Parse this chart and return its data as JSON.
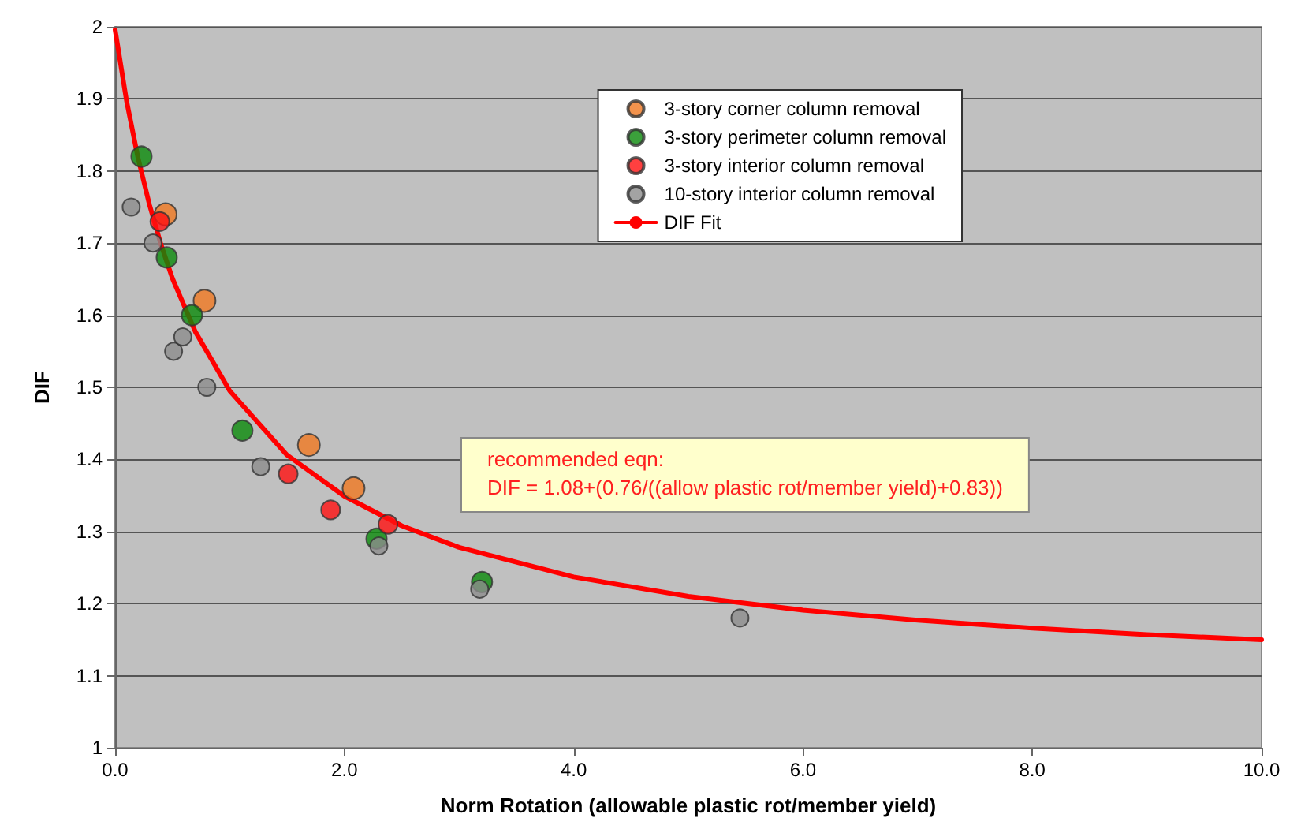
{
  "chart_data": {
    "type": "scatter",
    "xlabel": "Norm Rotation (allowable plastic rot/member yield)",
    "ylabel": "DIF",
    "xlim": [
      0,
      10
    ],
    "xticks": [
      {
        "value": 0,
        "label": "0.0"
      },
      {
        "value": 2,
        "label": "2.0"
      },
      {
        "value": 4,
        "label": "4.0"
      },
      {
        "value": 6,
        "label": "6.0"
      },
      {
        "value": 8,
        "label": "8.0"
      },
      {
        "value": 10,
        "label": "10.0"
      }
    ],
    "ylim": [
      1,
      2
    ],
    "yticks": [
      1,
      1.1,
      1.2,
      1.3,
      1.4,
      1.5,
      1.6,
      1.7,
      1.8,
      1.9,
      2
    ],
    "grid": "y",
    "legend": "top right",
    "marker": "circle",
    "annotations": [
      "recommended eqn:",
      "DIF = 1.08+(0.76/((allow plastic rot/member yield)+0.83))"
    ],
    "series": [
      {
        "name": "3-story corner column removal",
        "color": "#f07820",
        "x": [
          0.44,
          0.78,
          1.69,
          2.08
        ],
        "values": [
          1.74,
          1.62,
          1.42,
          1.36
        ]
      },
      {
        "name": "3-story perimeter column removal",
        "color": "#0a8a0a",
        "x": [
          0.23,
          0.45,
          0.67,
          1.11,
          2.28,
          3.2
        ],
        "values": [
          1.82,
          1.68,
          1.6,
          1.44,
          1.29,
          1.23
        ]
      },
      {
        "name": "3-story interior column removal",
        "color": "#ff1010",
        "x": [
          0.39,
          1.51,
          1.88,
          2.38
        ],
        "values": [
          1.73,
          1.38,
          1.33,
          1.31
        ]
      },
      {
        "name": "10-story interior column removal",
        "color": "#8c8c8c",
        "x": [
          0.14,
          0.33,
          0.51,
          0.59,
          0.8,
          1.27,
          2.3,
          3.18,
          5.45
        ],
        "values": [
          1.75,
          1.7,
          1.55,
          1.57,
          1.5,
          1.39,
          1.28,
          1.22,
          1.18
        ]
      },
      {
        "name": "DIF Fit",
        "type": "line",
        "marker": "none",
        "color": "#ff0000",
        "x": [
          0,
          0.1,
          0.2,
          0.3,
          0.4,
          0.5,
          0.7,
          1,
          1.5,
          2,
          2.5,
          3,
          4,
          5,
          6,
          7,
          8,
          9,
          10
        ],
        "values": [
          1.996,
          1.897,
          1.818,
          1.753,
          1.698,
          1.651,
          1.577,
          1.495,
          1.406,
          1.349,
          1.308,
          1.278,
          1.237,
          1.21,
          1.191,
          1.177,
          1.166,
          1.157,
          1.15
        ]
      }
    ]
  }
}
